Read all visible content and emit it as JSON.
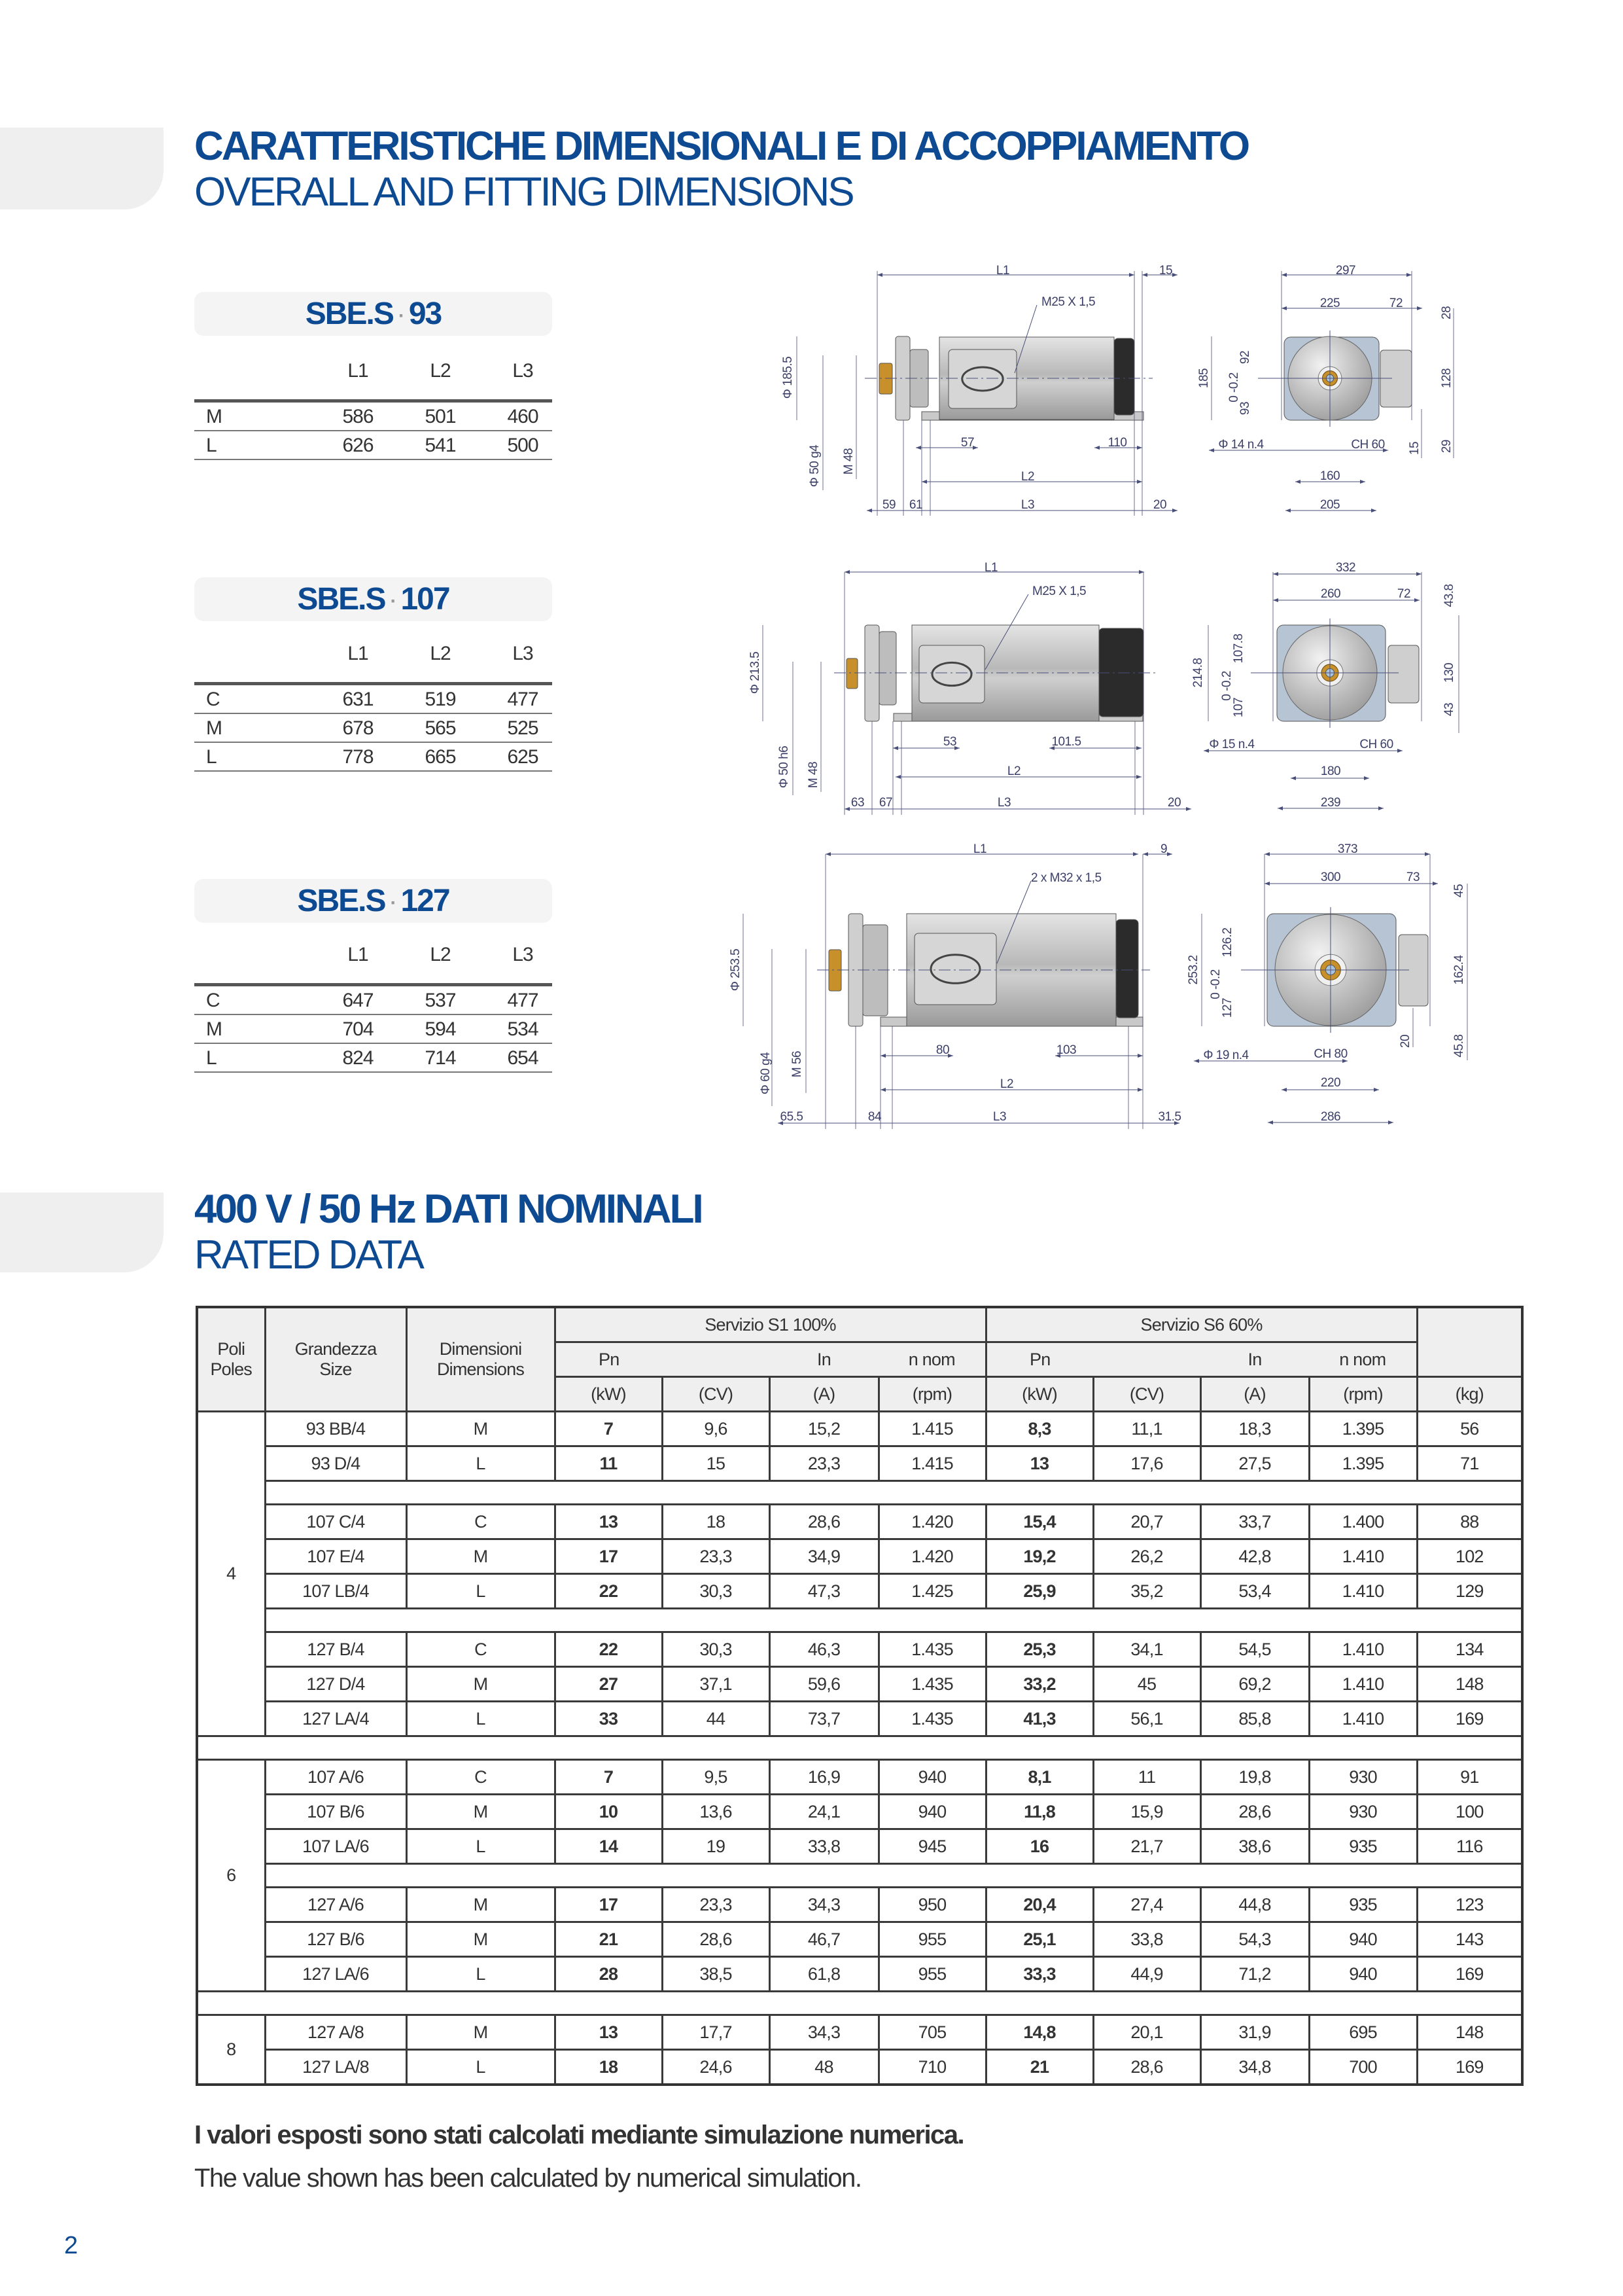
{
  "dimensions_section": {
    "title_it": "CARATTERISTICHE DIMENSIONALI E DI ACCOPPIAMENTO",
    "title_en": "OVERALL AND FITTING DIMENSIONS"
  },
  "dimension_tables": [
    {
      "prefix": "SBE.S",
      "separator": "·",
      "size": "93",
      "columns": [
        "L1",
        "L2",
        "L3"
      ],
      "rows": [
        {
          "label": "M",
          "values": [
            "586",
            "501",
            "460"
          ]
        },
        {
          "label": "L",
          "values": [
            "626",
            "541",
            "500"
          ]
        }
      ]
    },
    {
      "prefix": "SBE.S",
      "separator": "·",
      "size": "107",
      "columns": [
        "L1",
        "L2",
        "L3"
      ],
      "rows": [
        {
          "label": "C",
          "values": [
            "631",
            "519",
            "477"
          ]
        },
        {
          "label": "M",
          "values": [
            "678",
            "565",
            "525"
          ]
        },
        {
          "label": "L",
          "values": [
            "778",
            "665",
            "625"
          ]
        }
      ]
    },
    {
      "prefix": "SBE.S",
      "separator": "·",
      "size": "127",
      "columns": [
        "L1",
        "L2",
        "L3"
      ],
      "rows": [
        {
          "label": "C",
          "values": [
            "647",
            "537",
            "477"
          ]
        },
        {
          "label": "M",
          "values": [
            "704",
            "594",
            "534"
          ]
        },
        {
          "label": "L",
          "values": [
            "824",
            "714",
            "654"
          ]
        }
      ]
    }
  ],
  "drawings": [
    {
      "L1": "L1",
      "end_gap": "15",
      "cable_thread": "M25 X 1,5",
      "flange_dia": "Φ 185.5",
      "shaft_dia": "Φ 50 g4",
      "shaft_thread": "M 48",
      "foot_front": "57",
      "foot_rear": "110",
      "L2": "L2",
      "shaft_len": "59",
      "flange_len": "61",
      "L3": "L3",
      "rear_gap": "20",
      "total_width": "297",
      "body_width": "225",
      "box_width": "72",
      "box_top": "28",
      "total_height": "185",
      "upper_height": "92",
      "height_tol": "0 -0.2",
      "lower_height": "93",
      "box_height": "128",
      "box_bottom": "15",
      "foot_height": "29",
      "hole_dia": "Φ 14 n.4",
      "ch": "CH 60",
      "foot_spacing": "160",
      "base_width": "205"
    },
    {
      "L1": "L1",
      "cable_thread": "M25 X 1,5",
      "flange_dia": "Φ 213.5",
      "shaft_dia": "Φ 50 h6",
      "shaft_thread": "M 48",
      "foot_front": "53",
      "foot_rear": "101.5",
      "L2": "L2",
      "shaft_len": "63",
      "flange_len": "67",
      "L3": "L3",
      "rear_gap": "20",
      "total_width": "332",
      "body_width": "260",
      "box_width": "72",
      "box_top": "43.8",
      "total_height": "214.8",
      "upper_height": "107.8",
      "height_tol": "0 -0.2",
      "lower_height": "107",
      "box_height": "130",
      "box_bottom": "43",
      "hole_dia": "Φ 15 n.4",
      "ch": "CH 60",
      "foot_spacing": "180",
      "base_width": "239"
    },
    {
      "L1": "L1",
      "end_gap": "9",
      "cable_thread": "2 x M32 x 1,5",
      "flange_dia": "Φ 253.5",
      "shaft_dia": "Φ 60 g4",
      "shaft_thread": "M 56",
      "foot_front": "80",
      "foot_rear": "103",
      "L2": "L2",
      "shaft_len": "65.5",
      "flange_len": "84",
      "L3": "L3",
      "rear_gap": "31.5",
      "total_width": "373",
      "body_width": "300",
      "box_width": "73",
      "box_top": "45",
      "total_height": "253.2",
      "upper_height": "126.2",
      "height_tol": "0 -0.2",
      "lower_height": "127",
      "box_height": "162.4",
      "box_bottom": "20",
      "foot_height": "45.8",
      "hole_dia": "Φ 19 n.4",
      "ch": "CH 80",
      "foot_spacing": "220",
      "base_width": "286"
    }
  ],
  "rated_section": {
    "title_it": "400 V / 50 Hz DATI NOMINALI",
    "title_en": "RATED DATA"
  },
  "rated_table": {
    "headers": {
      "poles_it": "Poli",
      "poles_en": "Poles",
      "size_it": "Grandezza",
      "size_en": "Size",
      "dim_it": "Dimensioni",
      "dim_en": "Dimensions",
      "s1": "Servizio S1 100%",
      "s6": "Servizio S6 60%",
      "pn": "Pn",
      "in": "In",
      "nnom": "n nom",
      "units": [
        "(kW)",
        "(CV)",
        "(A)",
        "(rpm)",
        "(kW)",
        "(CV)",
        "(A)",
        "(rpm)",
        "(kg)"
      ]
    },
    "groups": [
      {
        "poles": "4",
        "blocks": [
          [
            {
              "size": "93 BB/4",
              "dim": "M",
              "s1": [
                "7",
                "9,6",
                "15,2",
                "1.415"
              ],
              "s6": [
                "8,3",
                "11,1",
                "18,3",
                "1.395"
              ],
              "kg": "56"
            },
            {
              "size": "93 D/4",
              "dim": "L",
              "s1": [
                "11",
                "15",
                "23,3",
                "1.415"
              ],
              "s6": [
                "13",
                "17,6",
                "27,5",
                "1.395"
              ],
              "kg": "71"
            }
          ],
          [
            {
              "size": "107 C/4",
              "dim": "C",
              "s1": [
                "13",
                "18",
                "28,6",
                "1.420"
              ],
              "s6": [
                "15,4",
                "20,7",
                "33,7",
                "1.400"
              ],
              "kg": "88"
            },
            {
              "size": "107 E/4",
              "dim": "M",
              "s1": [
                "17",
                "23,3",
                "34,9",
                "1.420"
              ],
              "s6": [
                "19,2",
                "26,2",
                "42,8",
                "1.410"
              ],
              "kg": "102"
            },
            {
              "size": "107 LB/4",
              "dim": "L",
              "s1": [
                "22",
                "30,3",
                "47,3",
                "1.425"
              ],
              "s6": [
                "25,9",
                "35,2",
                "53,4",
                "1.410"
              ],
              "kg": "129"
            }
          ],
          [
            {
              "size": "127 B/4",
              "dim": "C",
              "s1": [
                "22",
                "30,3",
                "46,3",
                "1.435"
              ],
              "s6": [
                "25,3",
                "34,1",
                "54,5",
                "1.410"
              ],
              "kg": "134"
            },
            {
              "size": "127 D/4",
              "dim": "M",
              "s1": [
                "27",
                "37,1",
                "59,6",
                "1.435"
              ],
              "s6": [
                "33,2",
                "45",
                "69,2",
                "1.410"
              ],
              "kg": "148"
            },
            {
              "size": "127 LA/4",
              "dim": "L",
              "s1": [
                "33",
                "44",
                "73,7",
                "1.435"
              ],
              "s6": [
                "41,3",
                "56,1",
                "85,8",
                "1.410"
              ],
              "kg": "169"
            }
          ]
        ]
      },
      {
        "poles": "6",
        "blocks": [
          [
            {
              "size": "107 A/6",
              "dim": "C",
              "s1": [
                "7",
                "9,5",
                "16,9",
                "940"
              ],
              "s6": [
                "8,1",
                "11",
                "19,8",
                "930"
              ],
              "kg": "91"
            },
            {
              "size": "107 B/6",
              "dim": "M",
              "s1": [
                "10",
                "13,6",
                "24,1",
                "940"
              ],
              "s6": [
                "11,8",
                "15,9",
                "28,6",
                "930"
              ],
              "kg": "100"
            },
            {
              "size": "107 LA/6",
              "dim": "L",
              "s1": [
                "14",
                "19",
                "33,8",
                "945"
              ],
              "s6": [
                "16",
                "21,7",
                "38,6",
                "935"
              ],
              "kg": "116"
            }
          ],
          [
            {
              "size": "127 A/6",
              "dim": "M",
              "s1": [
                "17",
                "23,3",
                "34,3",
                "950"
              ],
              "s6": [
                "20,4",
                "27,4",
                "44,8",
                "935"
              ],
              "kg": "123"
            },
            {
              "size": "127 B/6",
              "dim": "M",
              "s1": [
                "21",
                "28,6",
                "46,7",
                "955"
              ],
              "s6": [
                "25,1",
                "33,8",
                "54,3",
                "940"
              ],
              "kg": "143"
            },
            {
              "size": "127 LA/6",
              "dim": "L",
              "s1": [
                "28",
                "38,5",
                "61,8",
                "955"
              ],
              "s6": [
                "33,3",
                "44,9",
                "71,2",
                "940"
              ],
              "kg": "169"
            }
          ]
        ]
      },
      {
        "poles": "8",
        "blocks": [
          [
            {
              "size": "127 A/8",
              "dim": "M",
              "s1": [
                "13",
                "17,7",
                "34,3",
                "705"
              ],
              "s6": [
                "14,8",
                "20,1",
                "31,9",
                "695"
              ],
              "kg": "148"
            },
            {
              "size": "127 LA/8",
              "dim": "L",
              "s1": [
                "18",
                "24,6",
                "48",
                "710"
              ],
              "s6": [
                "21",
                "28,6",
                "34,8",
                "700"
              ],
              "kg": "169"
            }
          ]
        ]
      }
    ]
  },
  "footnote_it": "I valori esposti sono stati calcolati mediante simulazione numerica.",
  "footnote_en": "The value shown has been calculated by numerical simulation.",
  "page_number": "2",
  "colors": {
    "brand_blue": "#0d4a92",
    "header_grey": "#efefef",
    "dimension_line": "#4a4f7a"
  }
}
